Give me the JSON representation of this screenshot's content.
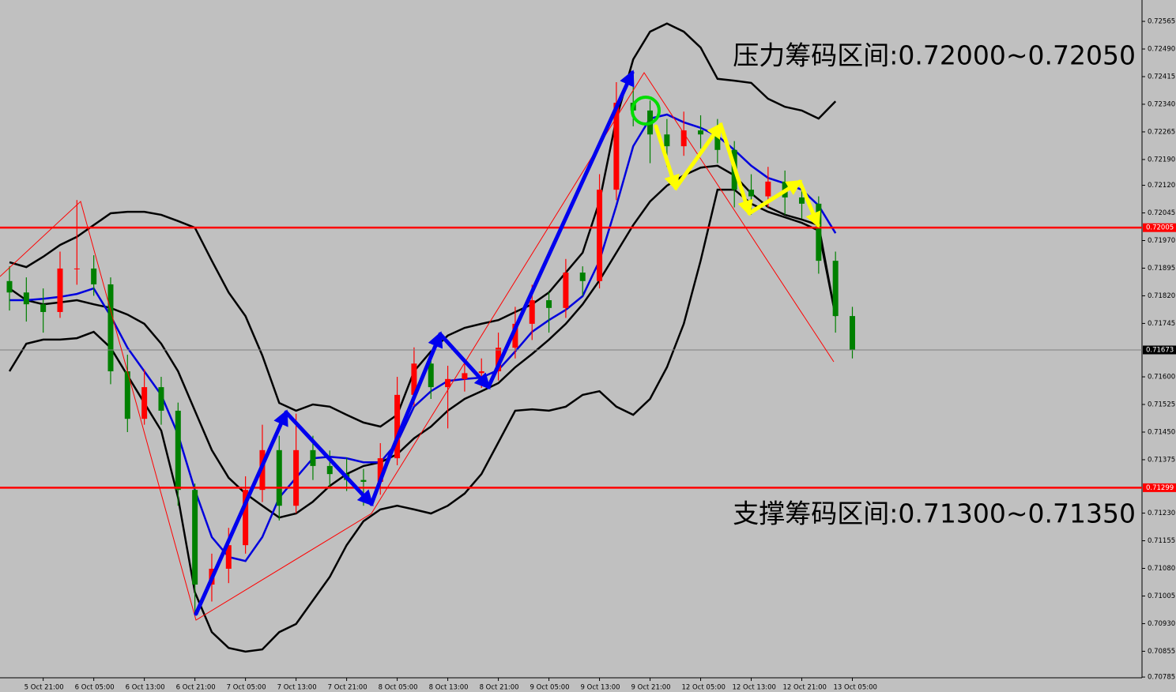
{
  "chart_data": {
    "type": "candlestick",
    "annotations": [
      "压力筹码区间:0.72000~0.72050",
      "支撑筹码区间:0.71300~0.71350"
    ],
    "categories": [
      null,
      null,
      "5 Oct 21:00",
      null,
      null,
      "6 Oct 05:00",
      null,
      null,
      "6 Oct 13:00",
      null,
      null,
      "6 Oct 21:00",
      null,
      null,
      "7 Oct 05:00",
      null,
      null,
      "7 Oct 13:00",
      null,
      null,
      "7 Oct 21:00",
      null,
      null,
      "8 Oct 05:00",
      null,
      null,
      "8 Oct 13:00",
      null,
      null,
      "8 Oct 21:00",
      null,
      null,
      "9 Oct 05:00",
      null,
      null,
      "9 Oct 13:00",
      null,
      null,
      "9 Oct 21:00",
      null,
      null,
      "12 Oct 05:00",
      null,
      null,
      "12 Oct 13:00",
      null,
      null,
      "12 Oct 21:00",
      null,
      null,
      "13 Oct 05:00"
    ],
    "open": [
      0.7186,
      0.71829,
      0.71797,
      0.71776,
      0.71894,
      0.71894,
      0.71851,
      0.71615,
      0.71486,
      0.71572,
      0.71508,
      0.71293,
      0.71036,
      0.71079,
      0.71143,
      0.71293,
      0.71401,
      0.7125,
      0.71401,
      0.71358,
      0.71336,
      0.7132,
      0.71315,
      0.71379,
      0.71551,
      0.71636,
      0.71572,
      0.71594,
      0.7161,
      0.71615,
      0.71679,
      0.71744,
      0.71808,
      0.71787,
      0.71883,
      0.7186,
      0.72108,
      0.72344,
      0.72323,
      0.72258,
      0.72226,
      0.72269,
      0.72258,
      0.72216,
      0.72108,
      0.7209,
      0.7213,
      0.72087,
      0.7207,
      0.71915,
      0.71765
    ],
    "high": [
      0.719,
      0.7187,
      0.7184,
      0.7194,
      0.7208,
      0.7193,
      0.7187,
      0.7166,
      0.7162,
      0.716,
      0.7153,
      0.7131,
      0.7112,
      0.7119,
      0.7133,
      0.7147,
      0.7144,
      0.715,
      0.7144,
      0.714,
      0.7138,
      0.7135,
      0.7142,
      0.716,
      0.7168,
      0.7166,
      0.7163,
      0.7165,
      0.7165,
      0.7172,
      0.7179,
      0.7185,
      0.7183,
      0.7192,
      0.719,
      0.7215,
      0.724,
      0.7242,
      0.7235,
      0.723,
      0.7232,
      0.7231,
      0.723,
      0.7224,
      0.7215,
      0.7217,
      0.7216,
      0.7211,
      0.7209,
      0.7194,
      0.7179
    ],
    "low": [
      0.7178,
      0.7175,
      0.7172,
      0.7176,
      0.7185,
      0.7182,
      0.7158,
      0.7145,
      0.7147,
      0.7147,
      0.7125,
      0.7096,
      0.7099,
      0.7104,
      0.7112,
      0.7126,
      0.7121,
      0.7123,
      0.7132,
      0.713,
      0.7129,
      0.7125,
      0.7128,
      0.7136,
      0.7152,
      0.7154,
      0.7146,
      0.7156,
      0.7157,
      0.7159,
      0.7165,
      0.717,
      0.7172,
      0.7176,
      0.7182,
      0.7184,
      0.7208,
      0.7228,
      0.7218,
      0.7217,
      0.722,
      0.7222,
      0.7218,
      0.7206,
      0.7204,
      0.7206,
      0.7204,
      0.7203,
      0.7188,
      0.7172,
      0.7165
    ],
    "close": [
      0.71829,
      0.71797,
      0.71776,
      0.71894,
      0.71894,
      0.71851,
      0.71615,
      0.71486,
      0.71572,
      0.71508,
      0.71293,
      0.71036,
      0.71079,
      0.71143,
      0.71293,
      0.71401,
      0.7125,
      0.71401,
      0.71358,
      0.71336,
      0.7132,
      0.71315,
      0.71379,
      0.71551,
      0.71636,
      0.71572,
      0.71594,
      0.7161,
      0.71615,
      0.71679,
      0.71744,
      0.71808,
      0.71787,
      0.71883,
      0.7186,
      0.72108,
      0.72344,
      0.72323,
      0.72258,
      0.72226,
      0.72269,
      0.72258,
      0.72216,
      0.72108,
      0.7209,
      0.7213,
      0.72087,
      0.7207,
      0.71915,
      0.71765,
      0.71673
    ],
    "up_color": "#ff0000",
    "down_color": "#008000",
    "overlays": [
      {
        "color": "#000000",
        "values": [
          0.71911,
          0.71898,
          0.71926,
          0.71958,
          0.7198,
          0.72012,
          0.72044,
          0.72048,
          0.72048,
          0.7204,
          0.72023,
          0.72005,
          0.71915,
          0.71829,
          0.71765,
          0.71658,
          0.71529,
          0.71508,
          0.71525,
          0.71519,
          0.71497,
          0.71476,
          0.71465,
          0.71497,
          0.71615,
          0.71669,
          0.71712,
          0.71733,
          0.71744,
          0.71754,
          0.71776,
          0.71797,
          0.71829,
          0.71883,
          0.71937,
          0.72076,
          0.72301,
          0.72462,
          0.72537,
          0.72559,
          0.72537,
          0.72494,
          0.72409,
          0.72404,
          0.72398,
          0.72355,
          0.72333,
          0.72323,
          0.72301,
          0.72348,
          null
        ]
      },
      {
        "color": "#000000",
        "values": [
          0.71615,
          0.7169,
          0.71701,
          0.71701,
          0.71705,
          0.71722,
          0.71679,
          0.71604,
          0.71529,
          0.71454,
          0.71272,
          0.71015,
          0.70907,
          0.70864,
          0.70854,
          0.7086,
          0.70907,
          0.70929,
          0.70993,
          0.71057,
          0.71143,
          0.71208,
          0.7124,
          0.7125,
          0.7124,
          0.71229,
          0.7125,
          0.71283,
          0.71336,
          0.71422,
          0.71508,
          0.71512,
          0.71508,
          0.71519,
          0.71551,
          0.71561,
          0.71519,
          0.71497,
          0.7154,
          0.71626,
          0.71744,
          0.71915,
          0.72108,
          0.72108,
          0.7207,
          0.72048,
          0.72033,
          0.72018,
          0.71997,
          0.71765,
          null
        ]
      },
      {
        "color": "#000000",
        "values": [
          0.7184,
          0.71808,
          0.71797,
          0.71802,
          0.71808,
          0.71797,
          0.71787,
          0.71769,
          0.71744,
          0.7169,
          0.71615,
          0.71508,
          0.71401,
          0.71326,
          0.71283,
          0.7125,
          0.71218,
          0.71229,
          0.71261,
          0.71304,
          0.71336,
          0.71358,
          0.71368,
          0.7139,
          0.71433,
          0.71465,
          0.71508,
          0.7154,
          0.71561,
          0.71583,
          0.71626,
          0.71662,
          0.71701,
          0.71744,
          0.71797,
          0.71862,
          0.71937,
          0.72012,
          0.72076,
          0.72119,
          0.72147,
          0.72168,
          0.72173,
          0.72147,
          0.72098,
          0.72061,
          0.7204,
          0.72027,
          0.72012,
          0.71765,
          null
        ]
      },
      {
        "color": "#0000dd",
        "values": [
          0.71808,
          0.71808,
          0.71812,
          0.71817,
          0.71825,
          0.7184,
          0.71765,
          0.71679,
          0.71615,
          0.71551,
          0.71443,
          0.71293,
          0.71165,
          0.71111,
          0.711,
          0.71165,
          0.71272,
          0.71326,
          0.71379,
          0.71383,
          0.71379,
          0.71368,
          0.71368,
          0.71422,
          0.71519,
          0.71561,
          0.71589,
          0.71594,
          0.71598,
          0.71619,
          0.71669,
          0.71722,
          0.71754,
          0.71782,
          0.71819,
          0.71915,
          0.72065,
          0.72226,
          0.72301,
          0.72312,
          0.72291,
          0.72276,
          0.72254,
          0.72216,
          0.72173,
          0.7214,
          0.72125,
          0.72108,
          0.72065,
          0.7199,
          null
        ]
      }
    ],
    "levels": [
      0.72005,
      0.71299
    ],
    "level_color": "#ff0000",
    "current_price": 0.71673,
    "ylim": [
      0.70783,
      0.72623
    ],
    "yticks": [
      0.72565,
      {
        "value": 0.7249,
        "label": "0.72490"
      },
      0.72415,
      {
        "value": 0.7234,
        "label": "0.72340"
      },
      0.72265,
      {
        "value": 0.7219,
        "label": "0.72190"
      },
      {
        "value": 0.7212,
        "label": "0.72120"
      },
      0.72045,
      {
        "value": 0.7197,
        "label": "0.71970"
      },
      0.71895,
      {
        "value": 0.7182,
        "label": "0.71820"
      },
      0.71745,
      {
        "value": 0.716,
        "label": "0.71600"
      },
      0.71525,
      {
        "value": 0.7145,
        "label": "0.71450"
      },
      0.71375,
      {
        "value": 0.7123,
        "label": "0.71230"
      },
      0.71155,
      {
        "value": 0.7108,
        "label": "0.71080"
      },
      0.71005,
      {
        "value": 0.7093,
        "label": "0.70930"
      },
      0.70855,
      0.70785
    ]
  }
}
